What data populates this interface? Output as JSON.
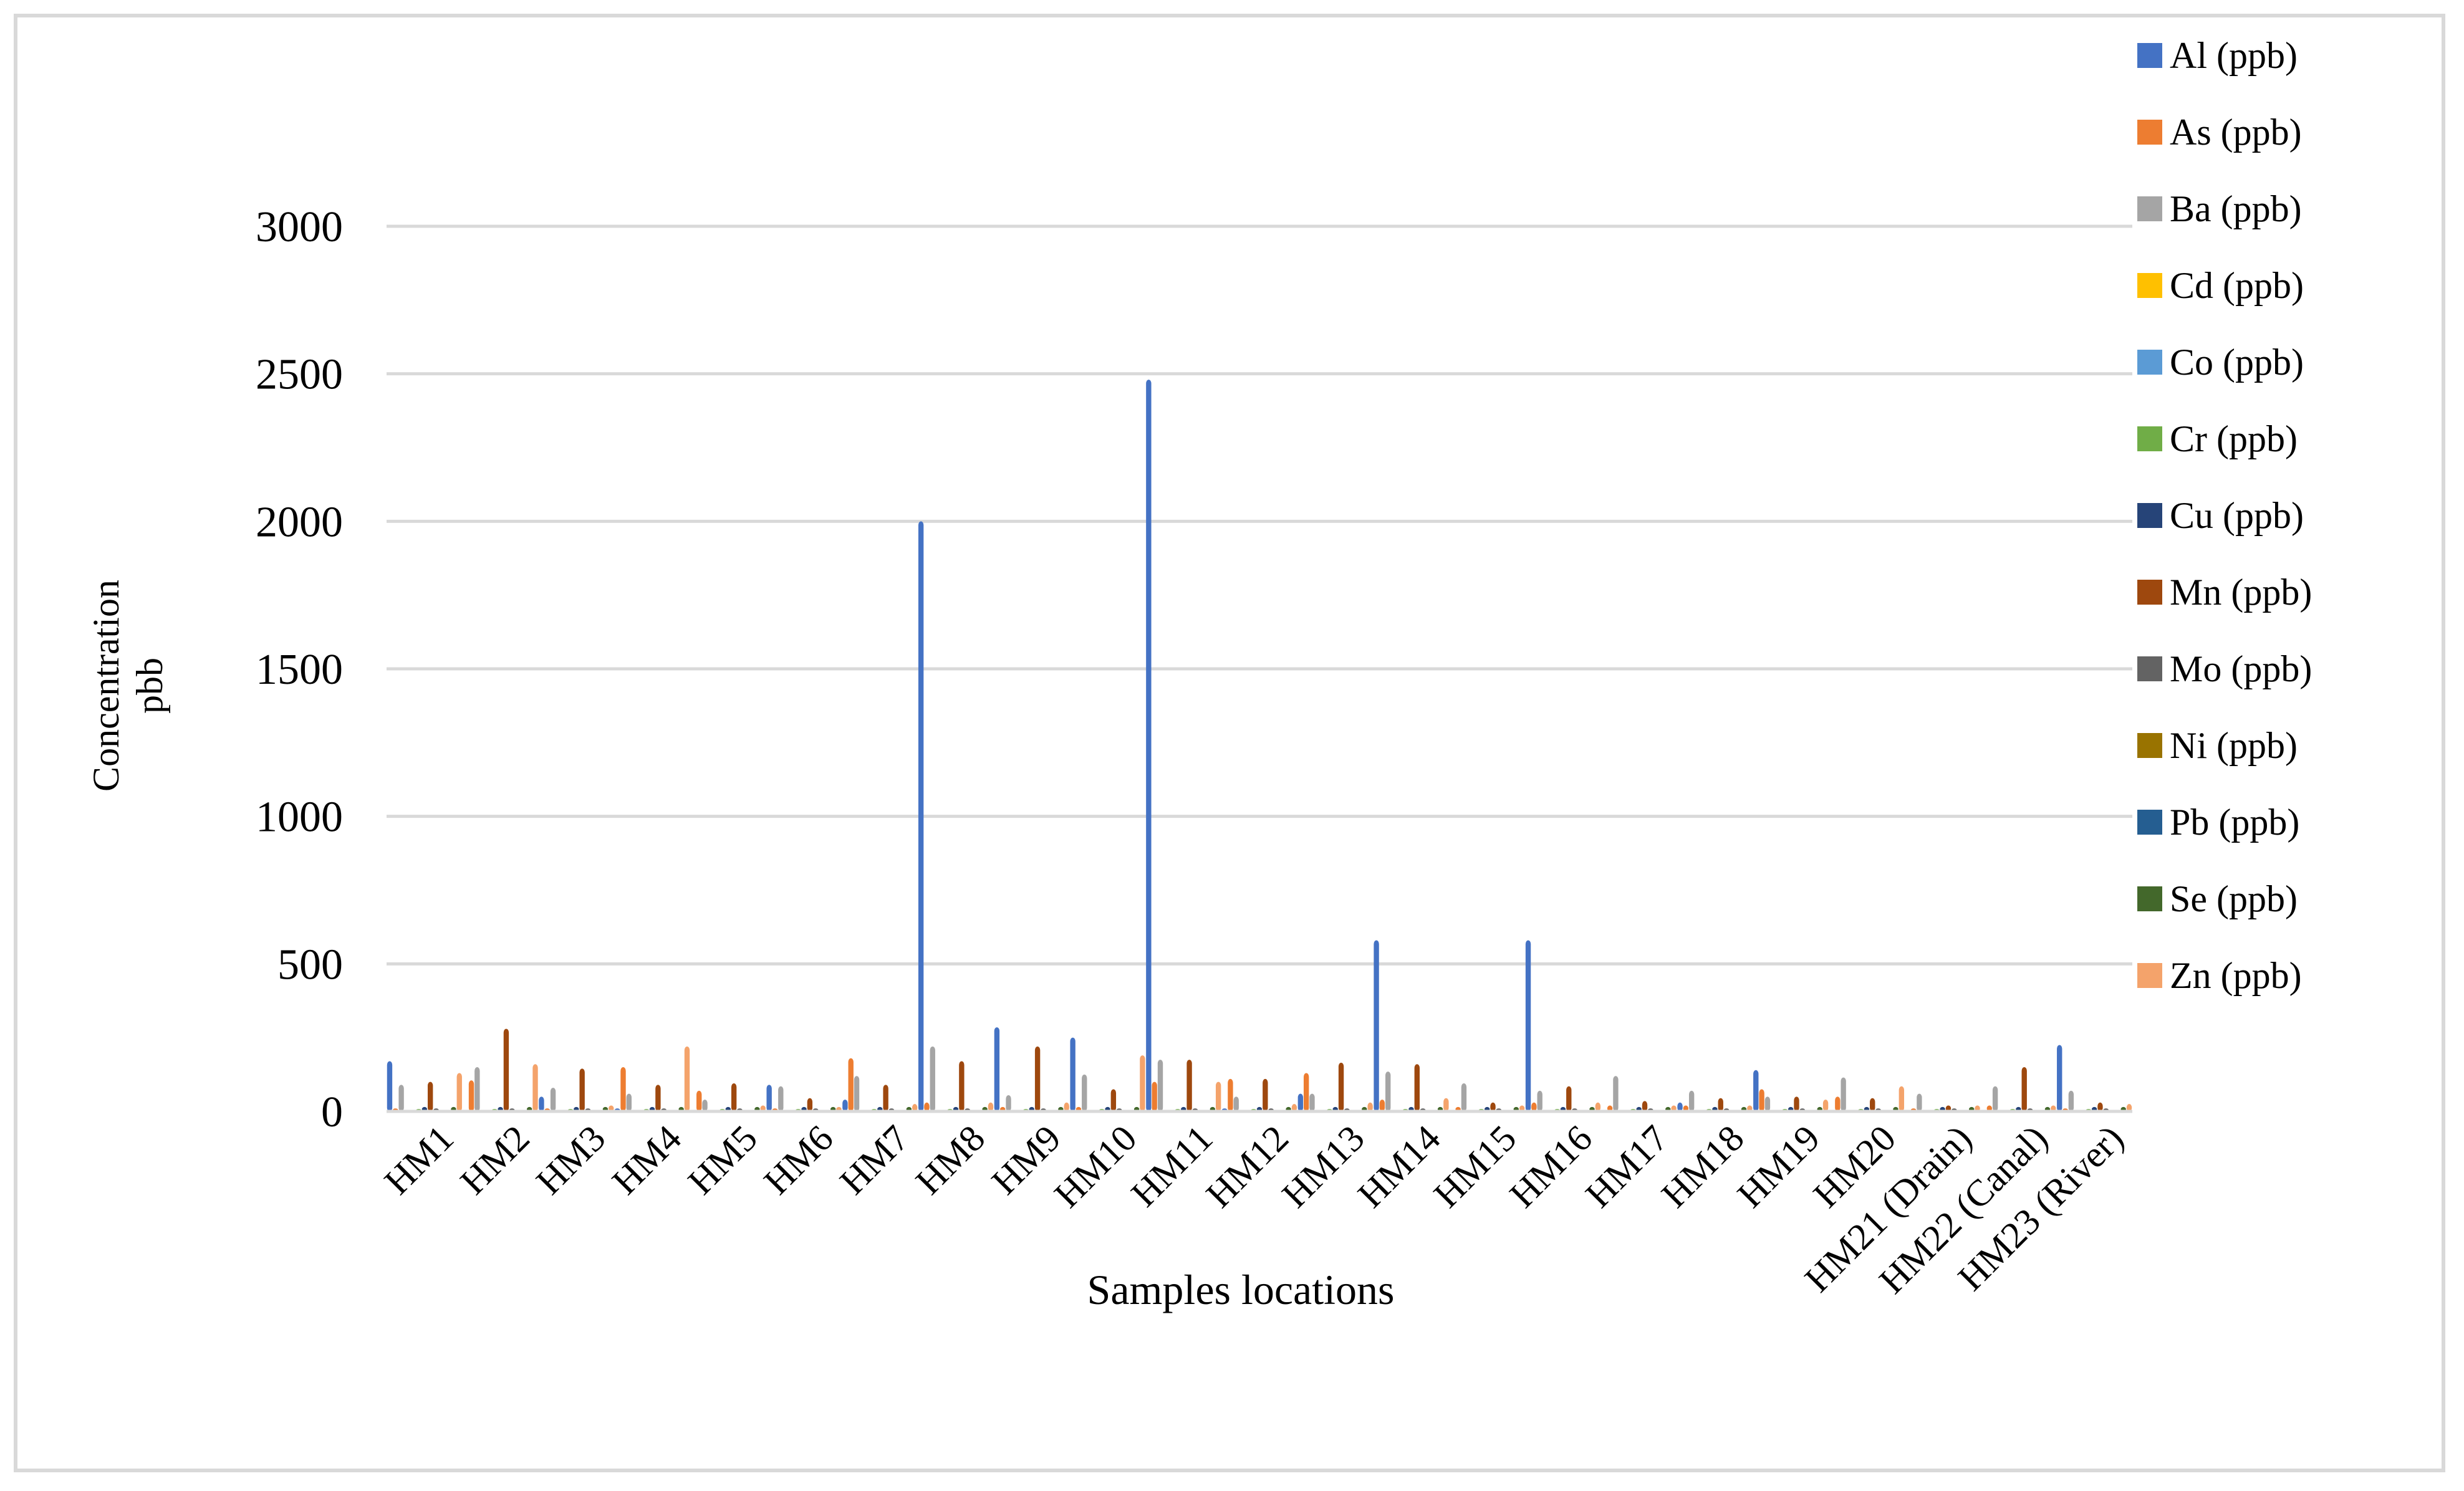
{
  "chart_data": {
    "type": "bar",
    "title": "",
    "xlabel": "Samples locations",
    "ylabel": [
      "Concentration",
      "pbb"
    ],
    "ylim": [
      0,
      3000
    ],
    "yticks": [
      0,
      500,
      1000,
      1500,
      2000,
      2500,
      3000
    ],
    "grid": true,
    "legend_position": "right",
    "categories": [
      "HM1",
      "HM2",
      "HM3",
      "HM4",
      "HM5",
      "HM6",
      "HM7",
      "HM8",
      "HM9",
      "HM10",
      "HM11",
      "HM12",
      "HM13",
      "HM14",
      "HM15",
      "HM16",
      "HM17",
      "HM18",
      "HM19",
      "HM20",
      "HM21 (Drain)",
      "HM22 (Canal)",
      "HM23 (River)"
    ],
    "series": [
      {
        "name": "Al (ppb)",
        "color": "#4472C4",
        "values": [
          170,
          5,
          50,
          10,
          5,
          90,
          40,
          2000,
          285,
          250,
          2480,
          10,
          60,
          580,
          5,
          580,
          5,
          30,
          140,
          5,
          5,
          5,
          225
        ]
      },
      {
        "name": "As (ppb)",
        "color": "#ED7D31",
        "values": [
          10,
          105,
          10,
          150,
          70,
          10,
          180,
          30,
          15,
          15,
          100,
          110,
          130,
          40,
          15,
          30,
          20,
          20,
          75,
          50,
          10,
          20,
          10
        ]
      },
      {
        "name": "Ba (ppb)",
        "color": "#A5A5A5",
        "values": [
          90,
          150,
          80,
          60,
          40,
          85,
          120,
          220,
          55,
          125,
          175,
          50,
          60,
          135,
          95,
          70,
          120,
          70,
          50,
          115,
          60,
          85,
          70
        ]
      },
      {
        "name": "Cd (ppb)",
        "color": "#FFC000",
        "values": [
          2,
          2,
          2,
          2,
          2,
          2,
          2,
          2,
          2,
          2,
          2,
          2,
          2,
          2,
          2,
          2,
          2,
          2,
          2,
          2,
          2,
          2,
          2
        ]
      },
      {
        "name": "Co (ppb)",
        "color": "#5B9BD5",
        "values": [
          5,
          5,
          5,
          5,
          5,
          5,
          5,
          5,
          5,
          5,
          5,
          5,
          5,
          5,
          5,
          5,
          5,
          5,
          5,
          5,
          5,
          5,
          5
        ]
      },
      {
        "name": "Cr (ppb)",
        "color": "#70AD47",
        "values": [
          8,
          8,
          8,
          8,
          8,
          8,
          8,
          8,
          8,
          8,
          8,
          8,
          8,
          8,
          8,
          8,
          8,
          8,
          8,
          8,
          8,
          8,
          8
        ]
      },
      {
        "name": "Cu (ppb)",
        "color": "#264478",
        "values": [
          15,
          15,
          15,
          15,
          15,
          15,
          15,
          15,
          15,
          15,
          15,
          15,
          15,
          15,
          15,
          15,
          15,
          15,
          15,
          15,
          15,
          15,
          15
        ]
      },
      {
        "name": "Mn (ppb)",
        "color": "#9E480E",
        "values": [
          100,
          280,
          145,
          90,
          95,
          45,
          90,
          170,
          220,
          75,
          175,
          110,
          165,
          160,
          30,
          85,
          35,
          45,
          50,
          45,
          20,
          150,
          30
        ]
      },
      {
        "name": "Mo (ppb)",
        "color": "#636363",
        "values": [
          10,
          10,
          10,
          10,
          10,
          10,
          10,
          10,
          10,
          10,
          10,
          10,
          10,
          10,
          10,
          10,
          10,
          10,
          10,
          10,
          10,
          10,
          10
        ]
      },
      {
        "name": "Ni (ppb)",
        "color": "#997300",
        "values": [
          5,
          5,
          5,
          5,
          5,
          5,
          5,
          5,
          5,
          5,
          5,
          5,
          5,
          5,
          5,
          5,
          5,
          5,
          5,
          5,
          5,
          5,
          5
        ]
      },
      {
        "name": "Pb (ppb)",
        "color": "#255E91",
        "values": [
          3,
          3,
          3,
          3,
          3,
          3,
          3,
          3,
          3,
          3,
          3,
          3,
          3,
          3,
          3,
          3,
          3,
          3,
          3,
          3,
          3,
          3,
          3
        ]
      },
      {
        "name": "Se (ppb)",
        "color": "#43682B",
        "values": [
          15,
          15,
          15,
          15,
          15,
          15,
          15,
          15,
          15,
          15,
          15,
          15,
          15,
          15,
          15,
          15,
          15,
          15,
          15,
          15,
          15,
          15,
          15
        ]
      },
      {
        "name": "Zn (ppb)",
        "color": "#F4A36B",
        "values": [
          130,
          160,
          20,
          220,
          20,
          15,
          25,
          30,
          30,
          190,
          100,
          25,
          30,
          45,
          20,
          30,
          20,
          20,
          40,
          85,
          20,
          20,
          25
        ]
      }
    ]
  }
}
